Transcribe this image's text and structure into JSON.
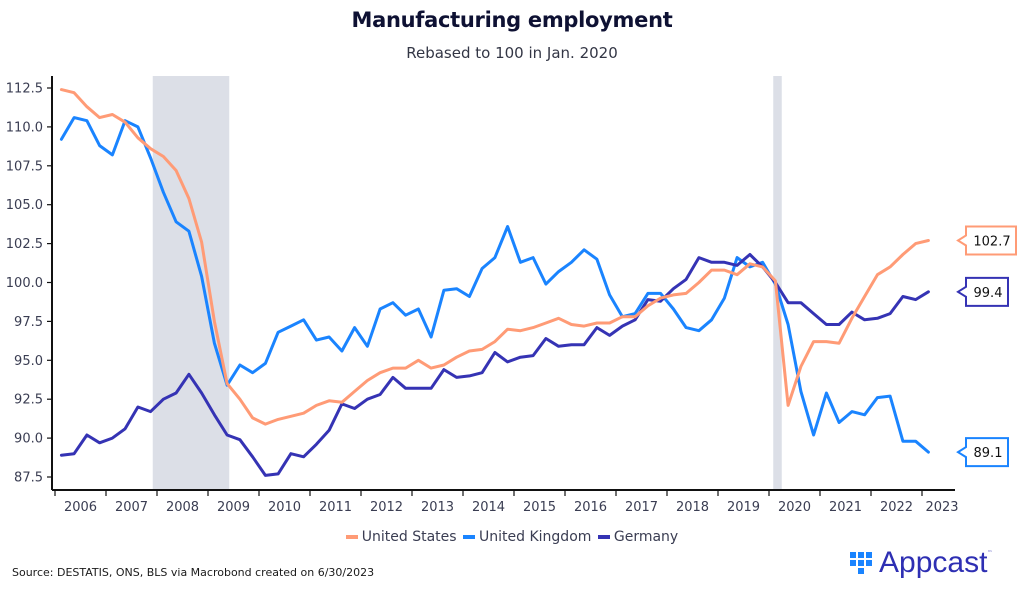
{
  "chart_data": {
    "type": "line",
    "title": "Manufacturing employment",
    "subtitle": "Rebased to 100 in Jan. 2020",
    "xlabel": "",
    "ylabel": "",
    "ylim": [
      87.5,
      112.5
    ],
    "yticks": [
      "112.5",
      "110.0",
      "107.5",
      "105.0",
      "102.5",
      "100.0",
      "97.5",
      "95.0",
      "92.5",
      "90.0",
      "87.5"
    ],
    "ytick_values": [
      112.5,
      110.0,
      107.5,
      105.0,
      102.5,
      100.0,
      97.5,
      95.0,
      92.5,
      90.0,
      87.5
    ],
    "xticks": [
      "2006",
      "2007",
      "2008",
      "2009",
      "2010",
      "2011",
      "2012",
      "2013",
      "2014",
      "2015",
      "2016",
      "2017",
      "2018",
      "2019",
      "2020",
      "2021",
      "2022",
      "2023"
    ],
    "x_start": "2006-Q1",
    "x_frequency": "quarterly",
    "grid": false,
    "legend_position": "bottom",
    "recessions": [
      {
        "start": "2007-12",
        "end": "2009-06"
      },
      {
        "start": "2020-02",
        "end": "2020-04"
      }
    ],
    "series": [
      {
        "name": "United States",
        "color": "#ff9b76",
        "end_label": "102.7",
        "values": [
          112.4,
          112.2,
          111.3,
          110.6,
          110.8,
          110.3,
          109.3,
          108.6,
          108.1,
          107.2,
          105.4,
          102.6,
          97.5,
          93.5,
          92.5,
          91.3,
          90.9,
          91.2,
          91.4,
          91.6,
          92.1,
          92.4,
          92.3,
          93.0,
          93.7,
          94.2,
          94.5,
          94.5,
          95.0,
          94.5,
          94.7,
          95.2,
          95.6,
          95.7,
          96.2,
          97.0,
          96.9,
          97.1,
          97.4,
          97.7,
          97.3,
          97.2,
          97.4,
          97.4,
          97.8,
          97.8,
          98.5,
          99.0,
          99.2,
          99.3,
          100.0,
          100.8,
          100.8,
          100.5,
          101.2,
          101.0,
          100.1,
          92.1,
          94.6,
          96.2,
          96.2,
          96.1,
          97.7,
          99.1,
          100.5,
          101.0,
          101.8,
          102.5,
          102.7
        ]
      },
      {
        "name": "United Kingdom",
        "color": "#1a84ff",
        "end_label": "89.1",
        "values": [
          109.2,
          110.6,
          110.4,
          108.8,
          108.2,
          110.4,
          110.0,
          108.0,
          105.8,
          103.9,
          103.3,
          100.4,
          96.1,
          93.4,
          94.7,
          94.2,
          94.8,
          96.8,
          97.2,
          97.6,
          96.3,
          96.5,
          95.6,
          97.1,
          95.9,
          98.3,
          98.7,
          97.9,
          98.3,
          96.5,
          99.5,
          99.6,
          99.1,
          100.9,
          101.6,
          103.6,
          101.3,
          101.6,
          99.9,
          100.7,
          101.3,
          102.1,
          101.5,
          99.2,
          97.8,
          98.0,
          99.3,
          99.3,
          98.3,
          97.1,
          96.9,
          97.6,
          99.0,
          101.6,
          101.0,
          101.3,
          99.9,
          97.3,
          93.0,
          90.2,
          92.9,
          91.0,
          91.7,
          91.5,
          92.6,
          92.7,
          89.8,
          89.8,
          89.1
        ]
      },
      {
        "name": "Germany",
        "color": "#3533b4",
        "end_label": "99.4",
        "values": [
          88.9,
          89.0,
          90.2,
          89.7,
          90.0,
          90.6,
          92.0,
          91.7,
          92.5,
          92.9,
          94.1,
          92.9,
          91.5,
          90.2,
          89.9,
          88.8,
          87.6,
          87.7,
          89.0,
          88.8,
          89.6,
          90.5,
          92.2,
          91.9,
          92.5,
          92.8,
          93.9,
          93.2,
          93.2,
          93.2,
          94.4,
          93.9,
          94.0,
          94.2,
          95.5,
          94.9,
          95.2,
          95.3,
          96.4,
          95.9,
          96.0,
          96.0,
          97.1,
          96.6,
          97.2,
          97.6,
          98.9,
          98.8,
          99.6,
          100.2,
          101.6,
          101.3,
          101.3,
          101.1,
          101.8,
          101.0,
          100.0,
          98.7,
          98.7,
          98.0,
          97.3,
          97.3,
          98.1,
          97.6,
          97.7,
          98.0,
          99.1,
          98.9,
          99.4
        ]
      }
    ]
  },
  "legend": {
    "items": [
      "United States",
      "United Kingdom",
      "Germany"
    ]
  },
  "footer": {
    "source": "Source: DESTATIS, ONS, BLS via Macrobond created on 6/30/2023",
    "logo_text": "Appcast",
    "logo_tm": "™"
  }
}
